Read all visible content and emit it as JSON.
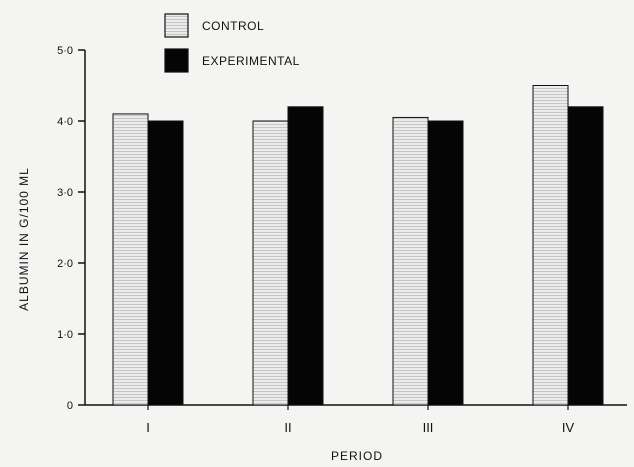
{
  "chart_data": {
    "type": "bar",
    "title": "",
    "xlabel": "PERIOD",
    "ylabel": "ALBUMIN IN G/100 ML",
    "categories": [
      "I",
      "II",
      "III",
      "IV"
    ],
    "ytick_labels": [
      "0",
      "1·0",
      "2·0",
      "3·0",
      "4·0",
      "5·0"
    ],
    "ytick_values": [
      0,
      1,
      2,
      3,
      4,
      5
    ],
    "ylim": [
      0,
      5
    ],
    "grid": false,
    "legend_position": "top-left",
    "series": [
      {
        "name": "CONTROL",
        "values": [
          4.1,
          4.0,
          4.05,
          4.5
        ],
        "color": "#e6e6e6",
        "pattern": "light-hatched"
      },
      {
        "name": "EXPERIMENTAL",
        "values": [
          4.0,
          4.2,
          4.0,
          4.2
        ],
        "color": "#050505",
        "pattern": "solid"
      }
    ]
  }
}
